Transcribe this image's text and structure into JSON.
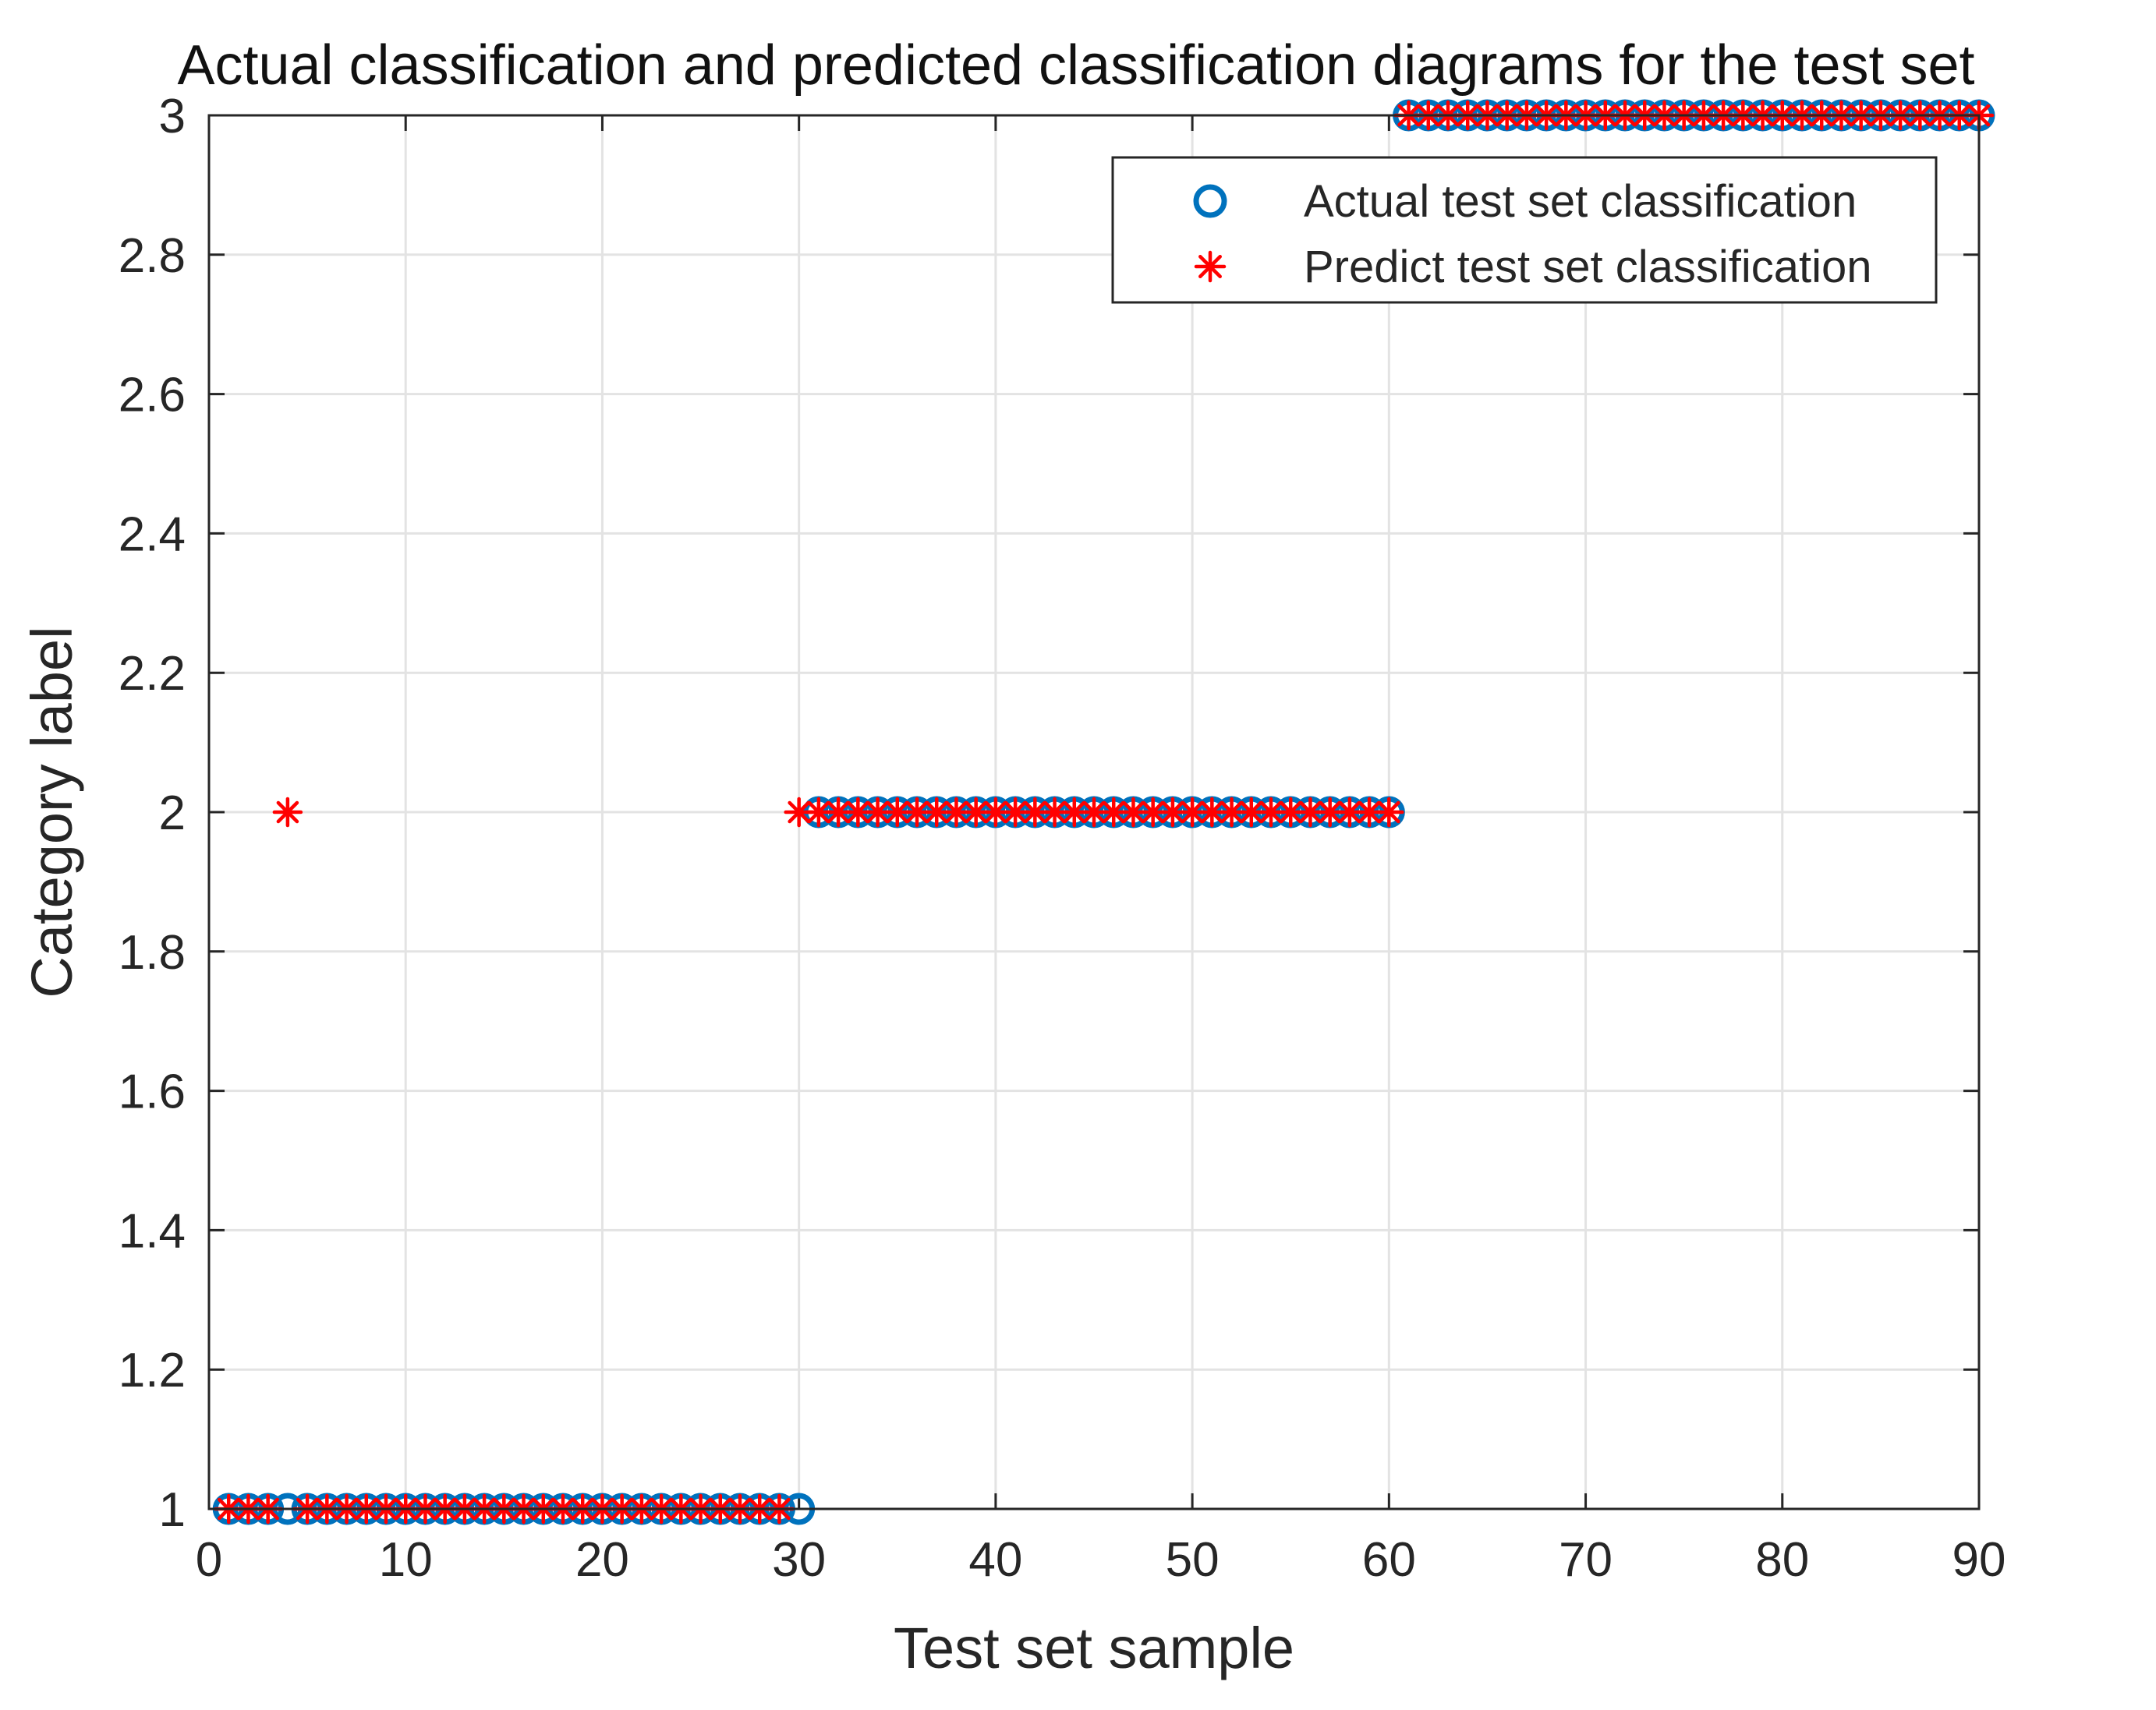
{
  "chart_data": {
    "type": "scatter",
    "title": "Actual classification and predicted classification diagrams for the test set",
    "xlabel": "Test set sample",
    "ylabel": "Category label",
    "xlim": [
      0,
      90
    ],
    "ylim": [
      1,
      3
    ],
    "xticks": [
      0,
      10,
      20,
      30,
      40,
      50,
      60,
      70,
      80,
      90
    ],
    "yticks": [
      1,
      1.2,
      1.4,
      1.6,
      1.8,
      2,
      2.2,
      2.4,
      2.6,
      2.8,
      3
    ],
    "xtick_labels": [
      "0",
      "10",
      "20",
      "30",
      "40",
      "50",
      "60",
      "70",
      "80",
      "90"
    ],
    "ytick_labels": [
      "1",
      "1.2",
      "1.4",
      "1.6",
      "1.8",
      "2",
      "2.2",
      "2.4",
      "2.6",
      "2.8",
      "3"
    ],
    "grid": true,
    "legend_position": "top-right",
    "series": [
      {
        "name": "Actual test set classification",
        "marker": "circle",
        "color": "#0072BD",
        "x": [
          1,
          2,
          3,
          4,
          5,
          6,
          7,
          8,
          9,
          10,
          11,
          12,
          13,
          14,
          15,
          16,
          17,
          18,
          19,
          20,
          21,
          22,
          23,
          24,
          25,
          26,
          27,
          28,
          29,
          30,
          31,
          32,
          33,
          34,
          35,
          36,
          37,
          38,
          39,
          40,
          41,
          42,
          43,
          44,
          45,
          46,
          47,
          48,
          49,
          50,
          51,
          52,
          53,
          54,
          55,
          56,
          57,
          58,
          59,
          60,
          61,
          62,
          63,
          64,
          65,
          66,
          67,
          68,
          69,
          70,
          71,
          72,
          73,
          74,
          75,
          76,
          77,
          78,
          79,
          80,
          81,
          82,
          83,
          84,
          85,
          86,
          87,
          88,
          89,
          90
        ],
        "y": [
          1,
          1,
          1,
          1,
          1,
          1,
          1,
          1,
          1,
          1,
          1,
          1,
          1,
          1,
          1,
          1,
          1,
          1,
          1,
          1,
          1,
          1,
          1,
          1,
          1,
          1,
          1,
          1,
          1,
          1,
          2,
          2,
          2,
          2,
          2,
          2,
          2,
          2,
          2,
          2,
          2,
          2,
          2,
          2,
          2,
          2,
          2,
          2,
          2,
          2,
          2,
          2,
          2,
          2,
          2,
          2,
          2,
          2,
          2,
          2,
          3,
          3,
          3,
          3,
          3,
          3,
          3,
          3,
          3,
          3,
          3,
          3,
          3,
          3,
          3,
          3,
          3,
          3,
          3,
          3,
          3,
          3,
          3,
          3,
          3,
          3,
          3,
          3,
          3,
          3
        ]
      },
      {
        "name": "Predict test set classification",
        "marker": "asterisk",
        "color": "#FF0000",
        "x": [
          1,
          2,
          3,
          4,
          5,
          6,
          7,
          8,
          9,
          10,
          11,
          12,
          13,
          14,
          15,
          16,
          17,
          18,
          19,
          20,
          21,
          22,
          23,
          24,
          25,
          26,
          27,
          28,
          29,
          30,
          31,
          32,
          33,
          34,
          35,
          36,
          37,
          38,
          39,
          40,
          41,
          42,
          43,
          44,
          45,
          46,
          47,
          48,
          49,
          50,
          51,
          52,
          53,
          54,
          55,
          56,
          57,
          58,
          59,
          60,
          61,
          62,
          63,
          64,
          65,
          66,
          67,
          68,
          69,
          70,
          71,
          72,
          73,
          74,
          75,
          76,
          77,
          78,
          79,
          80,
          81,
          82,
          83,
          84,
          85,
          86,
          87,
          88,
          89,
          90
        ],
        "y": [
          1,
          1,
          1,
          2,
          1,
          1,
          1,
          1,
          1,
          1,
          1,
          1,
          1,
          1,
          1,
          1,
          1,
          1,
          1,
          1,
          1,
          1,
          1,
          1,
          1,
          1,
          1,
          1,
          1,
          2,
          2,
          2,
          2,
          2,
          2,
          2,
          2,
          2,
          2,
          2,
          2,
          2,
          2,
          2,
          2,
          2,
          2,
          2,
          2,
          2,
          2,
          2,
          2,
          2,
          2,
          2,
          2,
          2,
          2,
          2,
          3,
          3,
          3,
          3,
          3,
          3,
          3,
          3,
          3,
          3,
          3,
          3,
          3,
          3,
          3,
          3,
          3,
          3,
          3,
          3,
          3,
          3,
          3,
          3,
          3,
          3,
          3,
          3,
          3,
          3
        ]
      }
    ]
  }
}
